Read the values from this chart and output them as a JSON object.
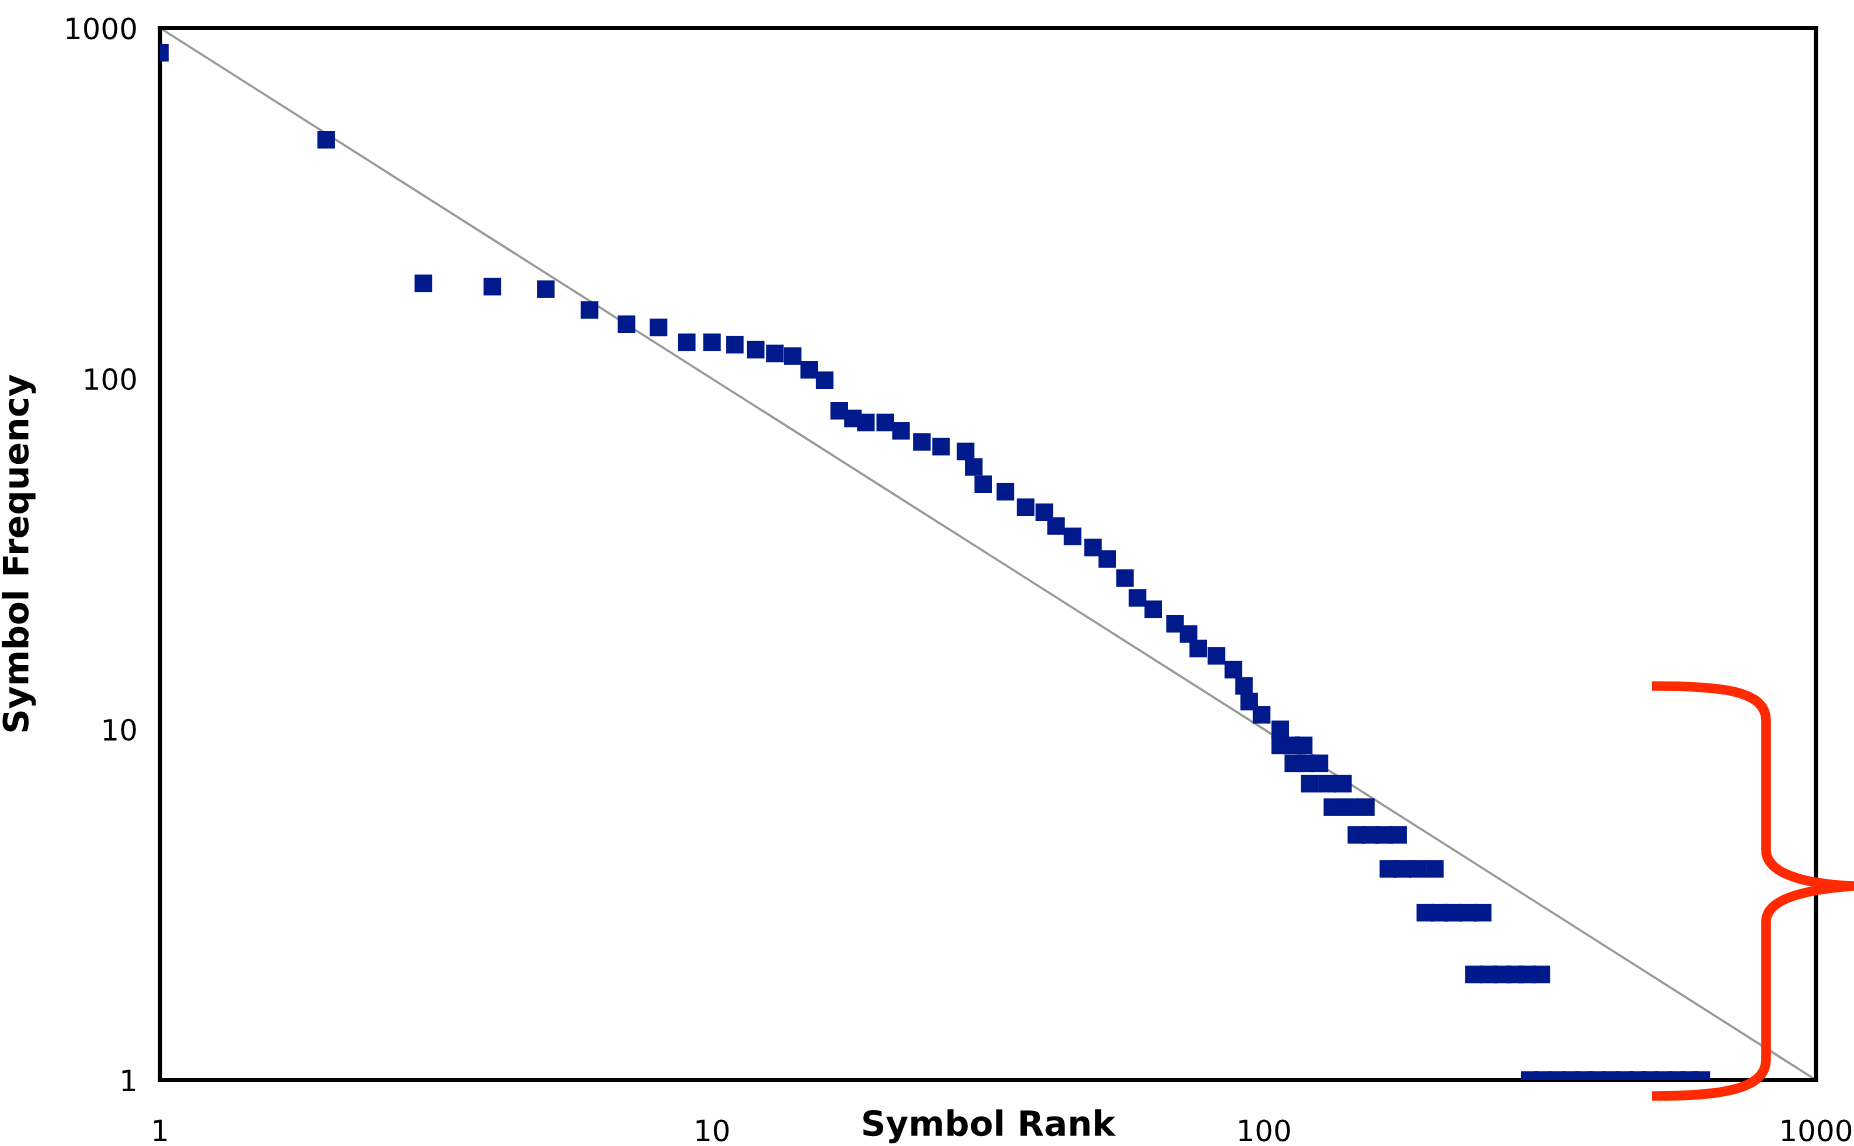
{
  "chart_data": {
    "type": "scatter",
    "xlabel": "Symbol Rank",
    "ylabel": "Symbol Frequency",
    "log": "xy",
    "marker": "square",
    "grid": false,
    "xlim": [
      1,
      1000
    ],
    "ylim": [
      1,
      1000
    ],
    "xticks": [
      1,
      10,
      100,
      1000
    ],
    "yticks": [
      1,
      10,
      100,
      1000
    ],
    "series": [
      {
        "color": "#001a8c",
        "x": [
          1,
          2,
          3,
          4,
          5,
          6,
          7,
          8,
          9,
          10,
          11,
          12,
          13,
          14,
          15,
          16,
          17,
          18,
          19,
          20.6,
          22,
          24,
          26,
          28.8,
          29.8,
          31,
          34,
          37,
          40,
          42,
          45,
          49,
          52,
          56,
          59,
          63,
          69,
          73,
          76,
          82,
          88,
          92,
          94,
          99,
          107,
          107,
          112,
          118,
          113,
          119,
          126,
          121,
          130,
          139,
          133,
          143,
          153,
          147,
          156,
          165,
          175,
          168,
          178,
          190,
          204,
          196,
          208,
          220,
          234,
          249,
          240,
          255,
          270,
          285,
          300,
          318,
          303,
          320,
          340,
          360,
          380,
          400,
          425,
          450,
          475,
          500,
          530,
          560,
          590,
          620
        ],
        "values": [
          850,
          480,
          187,
          183,
          180,
          157,
          143,
          140,
          127,
          127,
          125,
          121,
          118,
          116,
          106,
          99,
          81,
          77,
          75,
          75,
          71,
          66,
          64,
          62,
          56,
          50,
          47.6,
          43,
          41.6,
          38,
          35.5,
          33,
          30.6,
          27,
          23.7,
          22,
          20,
          18.7,
          17,
          16.2,
          14.8,
          13.3,
          12,
          11,
          10,
          9,
          9,
          9,
          8,
          8,
          8,
          7,
          7,
          7,
          6,
          6,
          6,
          5,
          5,
          5,
          5,
          4,
          4,
          4,
          4,
          3,
          3,
          3,
          3,
          3,
          2,
          2,
          2,
          2,
          2,
          2,
          1,
          1,
          1,
          1,
          1,
          1,
          1,
          1,
          1,
          1,
          1,
          1,
          1,
          1
        ]
      },
      {
        "type": "line",
        "color": "#999999",
        "line_style": "solid",
        "marker": "none",
        "x": [
          1,
          1000
        ],
        "values": [
          1000,
          1
        ]
      }
    ]
  }
}
